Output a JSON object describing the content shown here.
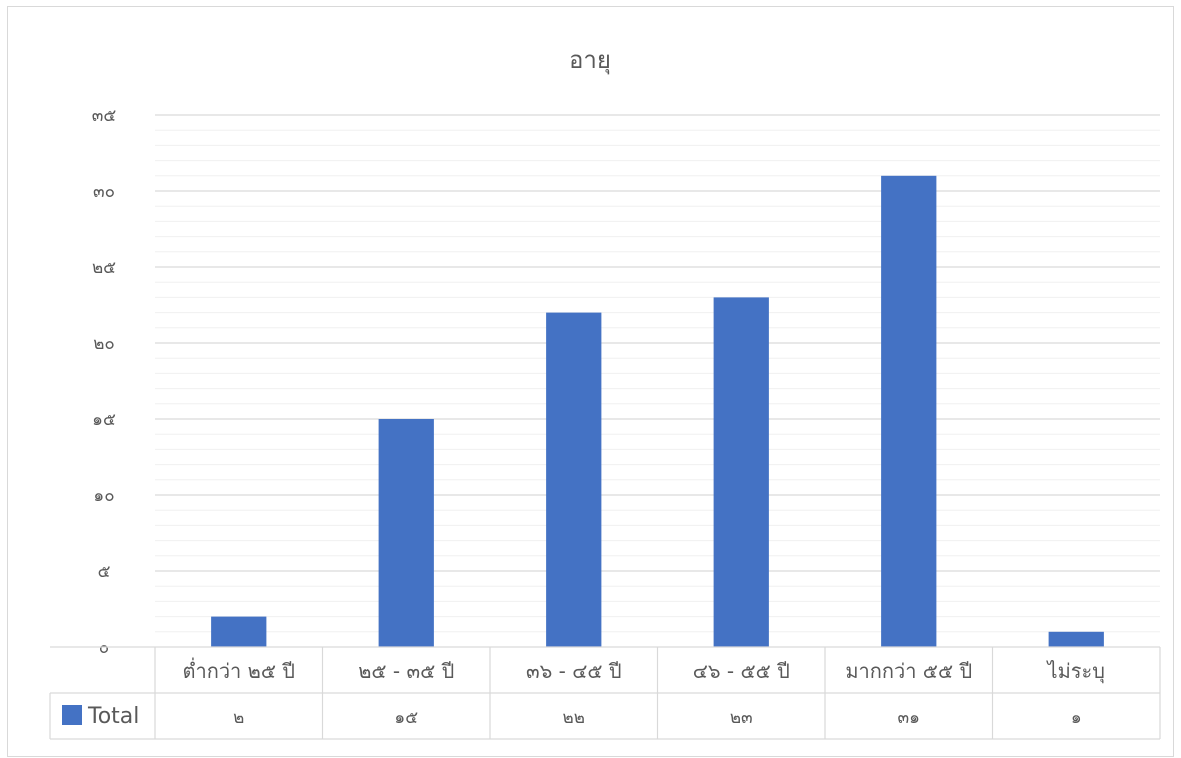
{
  "chart_data": {
    "type": "bar",
    "title": "อายุ",
    "categories": [
      "ต่ำกว่า ๒๕ ปี",
      "๒๕ - ๓๕ ปี",
      "๓๖ - ๔๕ ปี",
      "๔๖ - ๕๕ ปี",
      "มากกว่า ๕๕ ปี",
      "ไม่ระบุ"
    ],
    "series": [
      {
        "name": "Total",
        "values": [
          2,
          15,
          22,
          23,
          31,
          1
        ],
        "value_labels": [
          "๒",
          "๑๕",
          "๒๒",
          "๒๓",
          "๓๑",
          "๑"
        ],
        "color": "#4472c4"
      }
    ],
    "ylim": [
      0,
      35
    ],
    "yticks": [
      0,
      5,
      10,
      15,
      20,
      25,
      30,
      35
    ],
    "ytick_labels": [
      "๐",
      "๕",
      "๑๐",
      "๑๕",
      "๒๐",
      "๒๕",
      "๓๐",
      "๓๕"
    ],
    "grid": true,
    "minor_grid": true,
    "data_table": true,
    "legend_placement": "data-table-left"
  }
}
